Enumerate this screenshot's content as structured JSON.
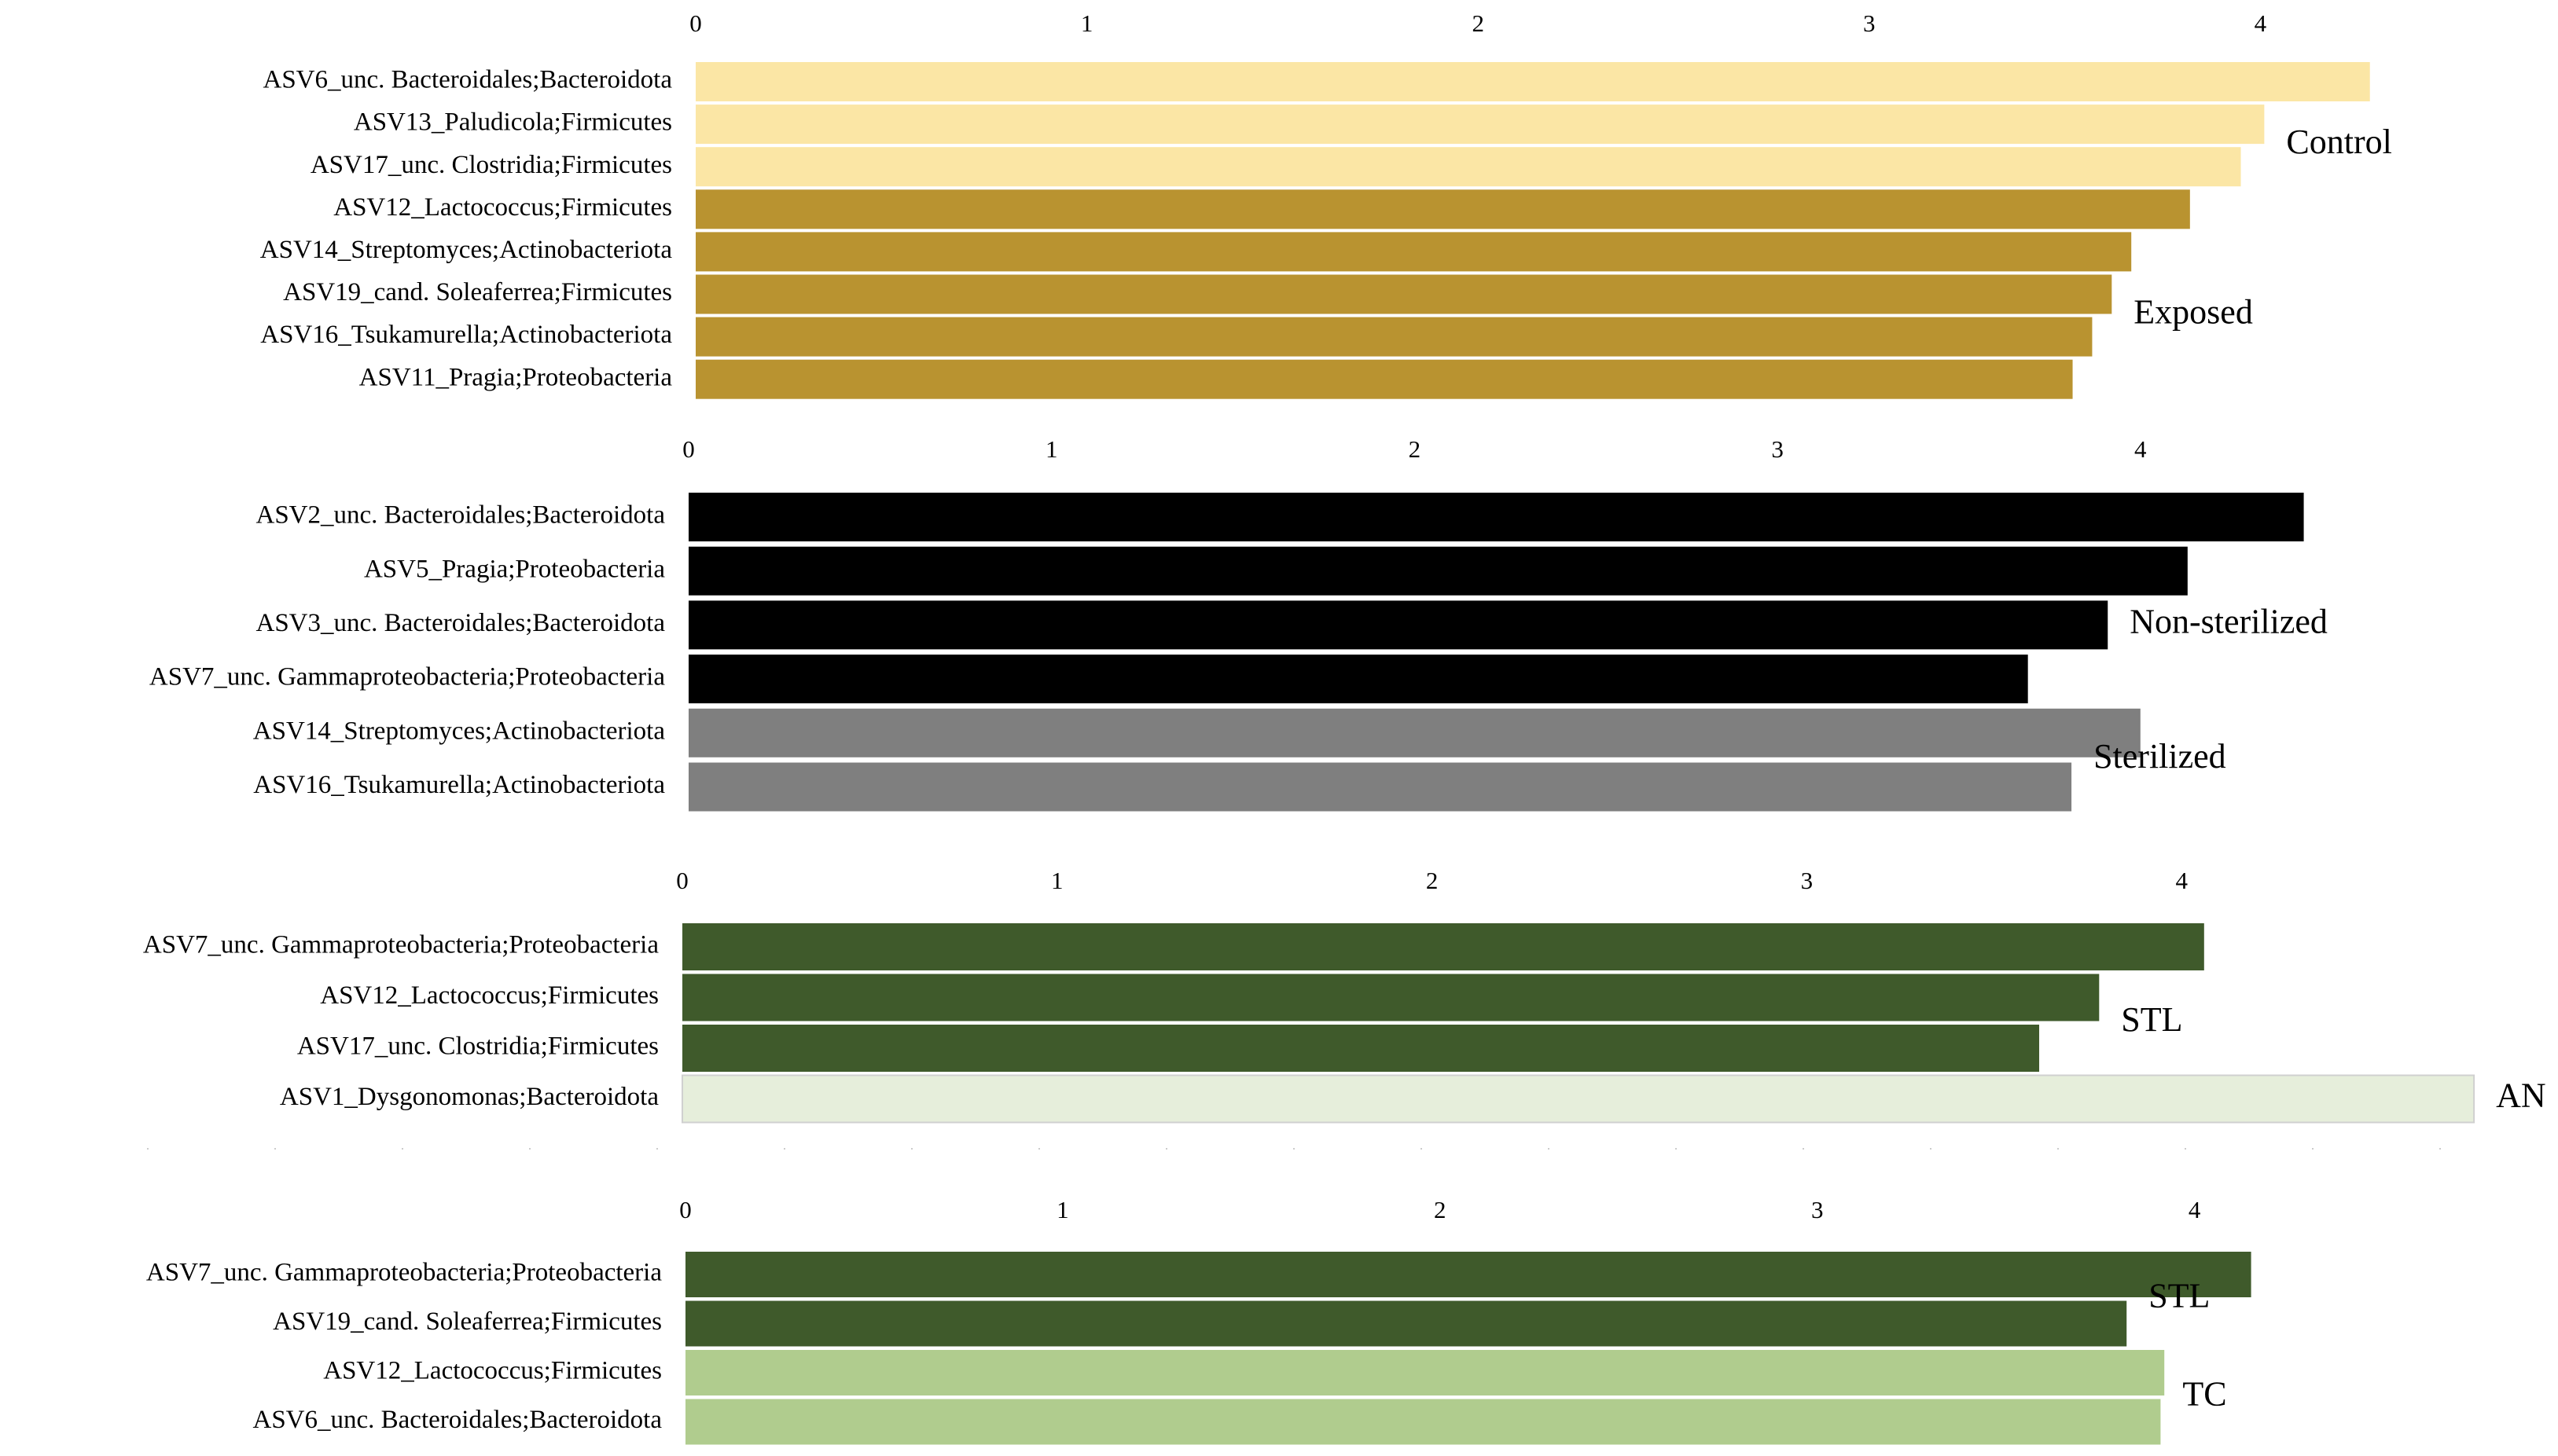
{
  "chart_data": [
    {
      "type": "bar",
      "orientation": "horizontal",
      "categories": [
        "ASV6_unc. Bacteroidales;Bacteroidota",
        "ASV13_Paludicola;Firmicutes",
        "ASV17_unc. Clostridia;Firmicutes",
        "ASV12_Lactococcus;Firmicutes",
        "ASV14_Streptomyces;Actinobacteriota",
        "ASV19_cand. Soleaferrea;Firmicutes",
        "ASV16_Tsukamurella;Actinobacteriota",
        "ASV11_Pragia;Proteobacteria"
      ],
      "series": [
        {
          "name": "Control",
          "color": "#fbe6a5",
          "values": [
            4.28,
            4.01,
            3.95,
            null,
            null,
            null,
            null,
            null
          ]
        },
        {
          "name": "Exposed",
          "color": "#b99330",
          "values": [
            null,
            null,
            null,
            3.82,
            3.67,
            3.62,
            3.57,
            3.52
          ]
        }
      ],
      "xlim": [
        0,
        5
      ],
      "xticks": [
        0,
        1,
        2,
        3,
        4
      ]
    },
    {
      "type": "bar",
      "orientation": "horizontal",
      "categories": [
        "ASV2_unc. Bacteroidales;Bacteroidota",
        "ASV5_Pragia;Proteobacteria",
        "ASV3_unc. Bacteroidales;Bacteroidota",
        "ASV7_unc. Gammaproteobacteria;Proteobacteria",
        "ASV14_Streptomyces;Actinobacteriota",
        "ASV16_Tsukamurella;Actinobacteriota"
      ],
      "series": [
        {
          "name": "Non-sterilized",
          "color": "#000000",
          "values": [
            4.45,
            4.13,
            3.91,
            3.69,
            null,
            null
          ]
        },
        {
          "name": "Sterilized",
          "color": "#7f7f7f",
          "values": [
            null,
            null,
            null,
            null,
            4.0,
            3.81
          ]
        }
      ],
      "xlim": [
        0,
        5
      ],
      "xticks": [
        0,
        1,
        2,
        3,
        4
      ]
    },
    {
      "type": "bar",
      "orientation": "horizontal",
      "categories": [
        "ASV7_unc. Gammaproteobacteria;Proteobacteria",
        "ASV12_Lactococcus;Firmicutes",
        "ASV17_unc. Clostridia;Firmicutes",
        "ASV1_Dysgonomonas;Bacteroidota"
      ],
      "series": [
        {
          "name": "STL",
          "color": "#3f5a2b",
          "values": [
            4.06,
            3.78,
            3.62,
            null
          ]
        },
        {
          "name": "AN",
          "color": "#e6eedb",
          "values": [
            null,
            null,
            null,
            4.78
          ]
        }
      ],
      "xlim": [
        0,
        5
      ],
      "xticks": [
        0,
        1,
        2,
        3,
        4
      ]
    },
    {
      "type": "bar",
      "orientation": "horizontal",
      "categories": [
        "ASV7_unc. Gammaproteobacteria;Proteobacteria",
        "ASV19_cand. Soleaferrea;Firmicutes",
        "ASV12_Lactococcus;Firmicutes",
        "ASV6_unc. Bacteroidales;Bacteroidota"
      ],
      "series": [
        {
          "name": "STL",
          "color": "#3f5a2b",
          "values": [
            4.15,
            3.82,
            null,
            null
          ]
        },
        {
          "name": "TC",
          "color": "#b0cc8e",
          "values": [
            null,
            null,
            3.92,
            3.91
          ]
        }
      ],
      "xlim": [
        0,
        5
      ],
      "xticks": [
        0,
        1,
        2,
        3,
        4
      ]
    }
  ]
}
